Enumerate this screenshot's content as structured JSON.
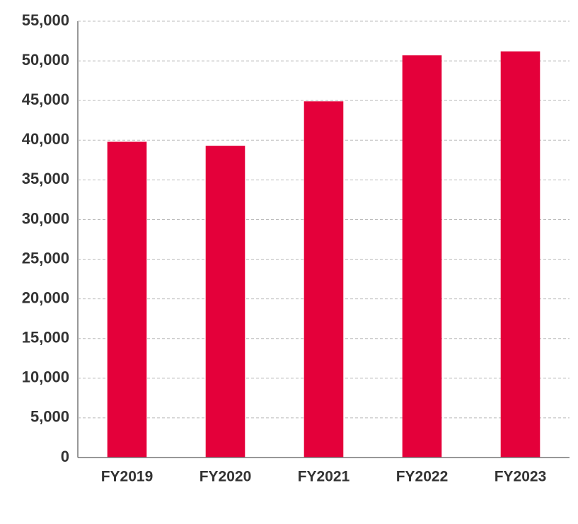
{
  "chart_data": {
    "type": "bar",
    "categories": [
      "FY2019",
      "FY2020",
      "FY2021",
      "FY2022",
      "FY2023"
    ],
    "values": [
      39800,
      39300,
      44900,
      50700,
      51200
    ],
    "color": "#e4003a",
    "ylim": [
      0,
      55000
    ],
    "yticks": [
      0,
      {
        "value": 5000,
        "label": "5,000"
      },
      {
        "value": 10000,
        "label": "10,000"
      },
      {
        "value": 15000,
        "label": "15,000"
      },
      {
        "value": 20000,
        "label": "20,000"
      },
      {
        "value": 25000,
        "label": "25,000"
      },
      {
        "value": 30000,
        "label": "30,000"
      },
      {
        "value": 35000,
        "label": "35,000"
      },
      {
        "value": 40000,
        "label": "40,000"
      },
      {
        "value": 45000,
        "label": "45,000"
      },
      {
        "value": 50000,
        "label": "50,000"
      },
      {
        "value": 55000,
        "label": "55,000"
      }
    ],
    "grid": true
  }
}
